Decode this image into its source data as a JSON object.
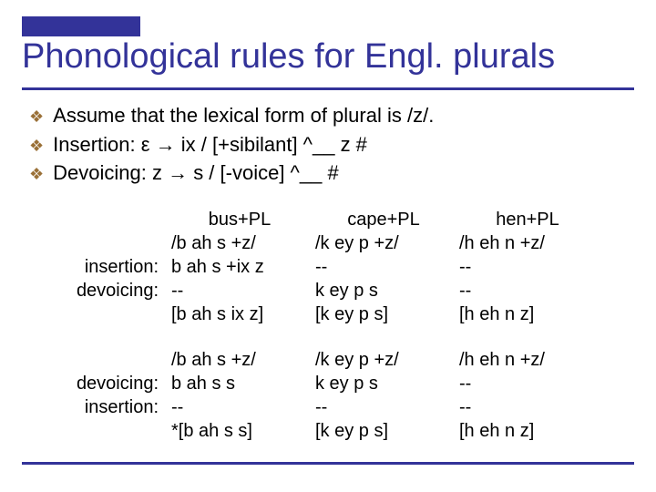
{
  "title": "Phonological rules for Engl. plurals",
  "bullets": [
    "Assume that the lexical form of plural is /z/.",
    "Insertion:  ε → ix / [+sibilant] ^__ z #",
    "Devoicing:  z → s / [-voice] ^__ #"
  ],
  "table1": {
    "headers": [
      "bus+PL",
      "cape+PL",
      "hen+PL"
    ],
    "rowlabels": [
      "",
      "insertion:",
      "devoicing:",
      ""
    ],
    "cols": [
      [
        "/b ah s +z/",
        "b ah s +ix z",
        "--",
        "[b ah s ix z]"
      ],
      [
        "/k ey p +z/",
        "--",
        "k ey p s",
        "[k ey p s]"
      ],
      [
        "/h eh n +z/",
        "--",
        "--",
        "[h eh n z]"
      ]
    ]
  },
  "table2": {
    "rowlabels": [
      "",
      "devoicing:",
      "insertion:",
      ""
    ],
    "cols": [
      [
        "/b ah s +z/",
        "b ah s s",
        "--",
        "*[b ah s s]"
      ],
      [
        "/k ey p +z/",
        "k ey p s",
        "--",
        "[k ey p s]"
      ],
      [
        "/h eh n +z/",
        "--",
        "--",
        "[h eh n z]"
      ]
    ]
  },
  "colors": {
    "accent": "#333399",
    "bullet_diamond": "#9a7037",
    "text": "#000000",
    "background": "#ffffff"
  },
  "fonts": {
    "family": "Comic Sans MS",
    "title_size_pt": 38,
    "body_size_pt": 22,
    "table_size_pt": 20
  }
}
